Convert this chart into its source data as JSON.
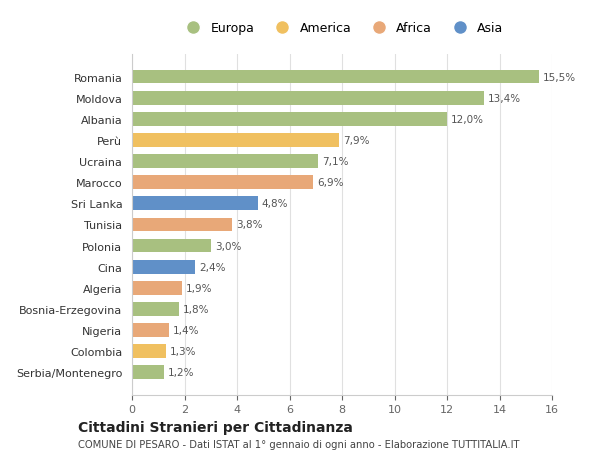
{
  "countries": [
    "Romania",
    "Moldova",
    "Albania",
    "Perù",
    "Ucraina",
    "Marocco",
    "Sri Lanka",
    "Tunisia",
    "Polonia",
    "Cina",
    "Algeria",
    "Bosnia-Erzegovina",
    "Nigeria",
    "Colombia",
    "Serbia/Montenegro"
  ],
  "values": [
    15.5,
    13.4,
    12.0,
    7.9,
    7.1,
    6.9,
    4.8,
    3.8,
    3.0,
    2.4,
    1.9,
    1.8,
    1.4,
    1.3,
    1.2
  ],
  "labels": [
    "15,5%",
    "13,4%",
    "12,0%",
    "7,9%",
    "7,1%",
    "6,9%",
    "4,8%",
    "3,8%",
    "3,0%",
    "2,4%",
    "1,9%",
    "1,8%",
    "1,4%",
    "1,3%",
    "1,2%"
  ],
  "continents": [
    "Europa",
    "Europa",
    "Europa",
    "America",
    "Europa",
    "Africa",
    "Asia",
    "Africa",
    "Europa",
    "Asia",
    "Africa",
    "Europa",
    "Africa",
    "America",
    "Europa"
  ],
  "colors": {
    "Europa": "#a8c080",
    "America": "#f0c060",
    "Africa": "#e8a878",
    "Asia": "#6090c8"
  },
  "legend_order": [
    "Europa",
    "America",
    "Africa",
    "Asia"
  ],
  "title": "Cittadini Stranieri per Cittadinanza",
  "subtitle": "COMUNE DI PESARO - Dati ISTAT al 1° gennaio di ogni anno - Elaborazione TUTTITALIA.IT",
  "xlim": [
    0,
    16
  ],
  "xticks": [
    0,
    2,
    4,
    6,
    8,
    10,
    12,
    14,
    16
  ],
  "background_color": "#ffffff",
  "grid_color": "#e0e0e0"
}
